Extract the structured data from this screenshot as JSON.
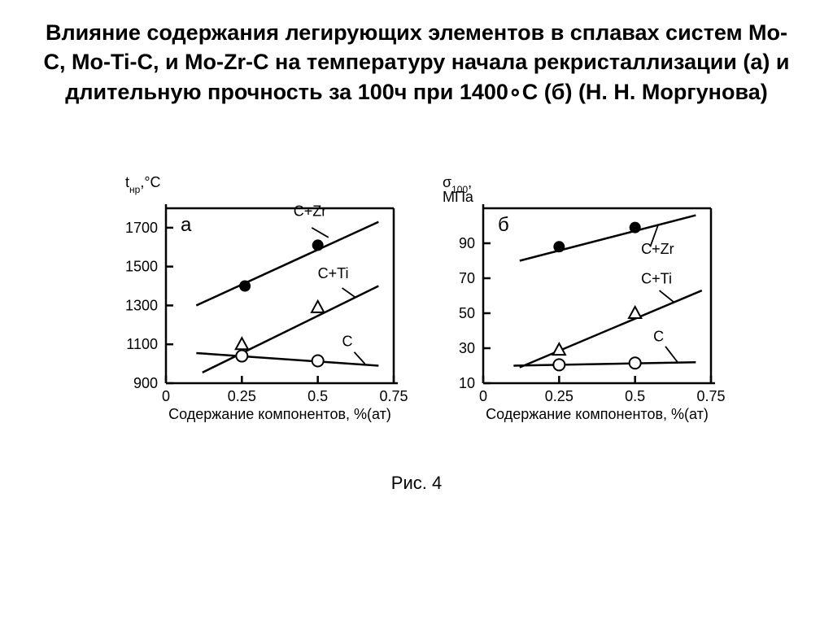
{
  "title": "Влияние содержания легирующих элементов в сплавах систем Mo-C, Mo-Ti-C, и Mo-Zr-C на температуру начала рекристаллизации (а) и длительную прочность за 100ч при 1400∘С (б) (Н. Н. Моргунова)",
  "caption": "Рис. 4",
  "common": {
    "background_color": "#ffffff",
    "axis_color": "#000000",
    "text_color": "#000000",
    "xlabel": "Содержание компонентов, %(ат)",
    "xlabel_fontsize": 18,
    "tick_fontsize": 18,
    "panel_label_fontsize": 24,
    "series_label_fontsize": 18,
    "xlim": [
      0,
      0.75
    ],
    "xticks": [
      0,
      0.25,
      0.5,
      0.75
    ],
    "axis_width": 2.5,
    "line_width": 2.5,
    "marker_radius": 7,
    "marker_stroke": 2
  },
  "chart_a": {
    "type": "scatter-line",
    "panel_label": "а",
    "ylabel_plain": "t",
    "ylabel_sub": "нр",
    "ylabel_unit": ",°С",
    "ylim": [
      900,
      1800
    ],
    "yticks": [
      900,
      1100,
      1300,
      1500,
      1700
    ],
    "series": [
      {
        "name": "C+Zr",
        "label": "C+Zr",
        "marker": "filled-circle",
        "line_x": [
          0.1,
          0.7
        ],
        "line_y": [
          1300,
          1730
        ],
        "points_x": [
          0.26,
          0.5
        ],
        "points_y": [
          1400,
          1610
        ],
        "label_x": 0.42,
        "label_y": 1760,
        "leader_x1": 0.48,
        "leader_y1": 1700,
        "leader_x2": 0.535,
        "leader_y2": 1650
      },
      {
        "name": "C+Ti",
        "label": "C+Ti",
        "marker": "open-triangle",
        "line_x": [
          0.12,
          0.7
        ],
        "line_y": [
          955,
          1400
        ],
        "points_x": [
          0.25,
          0.5
        ],
        "points_y": [
          1100,
          1290
        ],
        "label_x": 0.5,
        "label_y": 1440,
        "leader_x1": 0.58,
        "leader_y1": 1390,
        "leader_x2": 0.625,
        "leader_y2": 1340
      },
      {
        "name": "C",
        "label": "C",
        "marker": "open-circle",
        "line_x": [
          0.1,
          0.7
        ],
        "line_y": [
          1055,
          990
        ],
        "points_x": [
          0.25,
          0.5
        ],
        "points_y": [
          1040,
          1015
        ],
        "label_x": 0.58,
        "label_y": 1090,
        "leader_x1": 0.62,
        "leader_y1": 1060,
        "leader_x2": 0.655,
        "leader_y2": 1000
      }
    ]
  },
  "chart_b": {
    "type": "scatter-line",
    "panel_label": "б",
    "ylabel_plain": "σ",
    "ylabel_sub": "100",
    "ylabel_unit": ",",
    "ylabel_line2": "МПа",
    "ylim": [
      10,
      110
    ],
    "yticks": [
      10,
      30,
      50,
      70,
      90
    ],
    "series": [
      {
        "name": "C+Zr",
        "label": "C+Zr",
        "marker": "filled-circle",
        "line_x": [
          0.12,
          0.7
        ],
        "line_y": [
          80,
          106
        ],
        "points_x": [
          0.25,
          0.5
        ],
        "points_y": [
          88,
          99
        ],
        "label_x": 0.52,
        "label_y": 84,
        "leader_x1": 0.55,
        "leader_y1": 88,
        "leader_x2": 0.575,
        "leader_y2": 100
      },
      {
        "name": "C+Ti",
        "label": "C+Ti",
        "marker": "open-triangle",
        "line_x": [
          0.12,
          0.72
        ],
        "line_y": [
          19,
          63
        ],
        "points_x": [
          0.25,
          0.5
        ],
        "points_y": [
          29,
          50
        ],
        "label_x": 0.52,
        "label_y": 67,
        "leader_x1": 0.58,
        "leader_y1": 63,
        "leader_x2": 0.63,
        "leader_y2": 56
      },
      {
        "name": "C",
        "label": "C",
        "marker": "open-circle",
        "line_x": [
          0.1,
          0.7
        ],
        "line_y": [
          20,
          22
        ],
        "points_x": [
          0.25,
          0.5
        ],
        "points_y": [
          20.5,
          21.5
        ],
        "label_x": 0.56,
        "label_y": 34,
        "leader_x1": 0.6,
        "leader_y1": 31,
        "leader_x2": 0.64,
        "leader_y2": 22
      }
    ]
  }
}
